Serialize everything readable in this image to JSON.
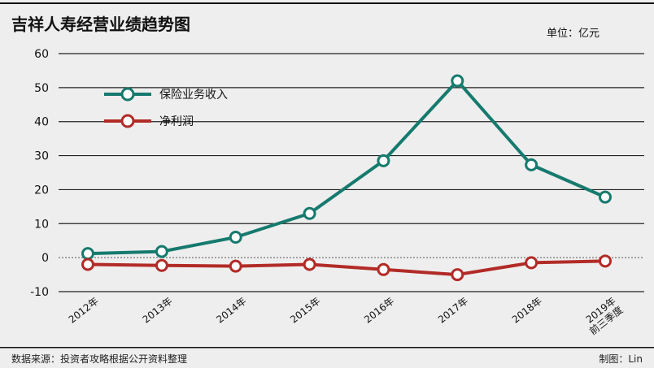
{
  "chart_data": {
    "type": "line",
    "title": "吉祥人寿经营业绩趋势图",
    "unit": "单位：亿元",
    "categories": [
      "2012年",
      "2013年",
      "2014年",
      "2015年",
      "2016年",
      "2017年",
      "2018年",
      "2019年前三季度"
    ],
    "category_labels": [
      [
        "2012年"
      ],
      [
        "2013年"
      ],
      [
        "2014年"
      ],
      [
        "2015年"
      ],
      [
        "2016年"
      ],
      [
        "2017年"
      ],
      [
        "2018年"
      ],
      [
        "2019年",
        "前三季度"
      ]
    ],
    "ylim": [
      -10,
      60
    ],
    "yticks": [
      -10,
      0,
      10,
      20,
      30,
      40,
      50,
      60
    ],
    "ytick_labels": [
      "-10",
      "0",
      "10",
      "20",
      "30",
      "40",
      "50",
      "60"
    ],
    "legend_position": "top-left",
    "series": [
      {
        "name": "保险业务收入",
        "color": "#167a6e",
        "values": [
          1.2,
          1.8,
          6.0,
          13.0,
          28.5,
          52.0,
          27.3,
          17.8
        ]
      },
      {
        "name": "净利润",
        "color": "#b22b27",
        "values": [
          -2.0,
          -2.3,
          -2.5,
          -2.0,
          -3.5,
          -5.0,
          -1.5,
          -1.0
        ]
      }
    ]
  },
  "footer": {
    "source": "数据来源：投资者攻略根据公开资料整理",
    "credit": "制图：Lin"
  }
}
